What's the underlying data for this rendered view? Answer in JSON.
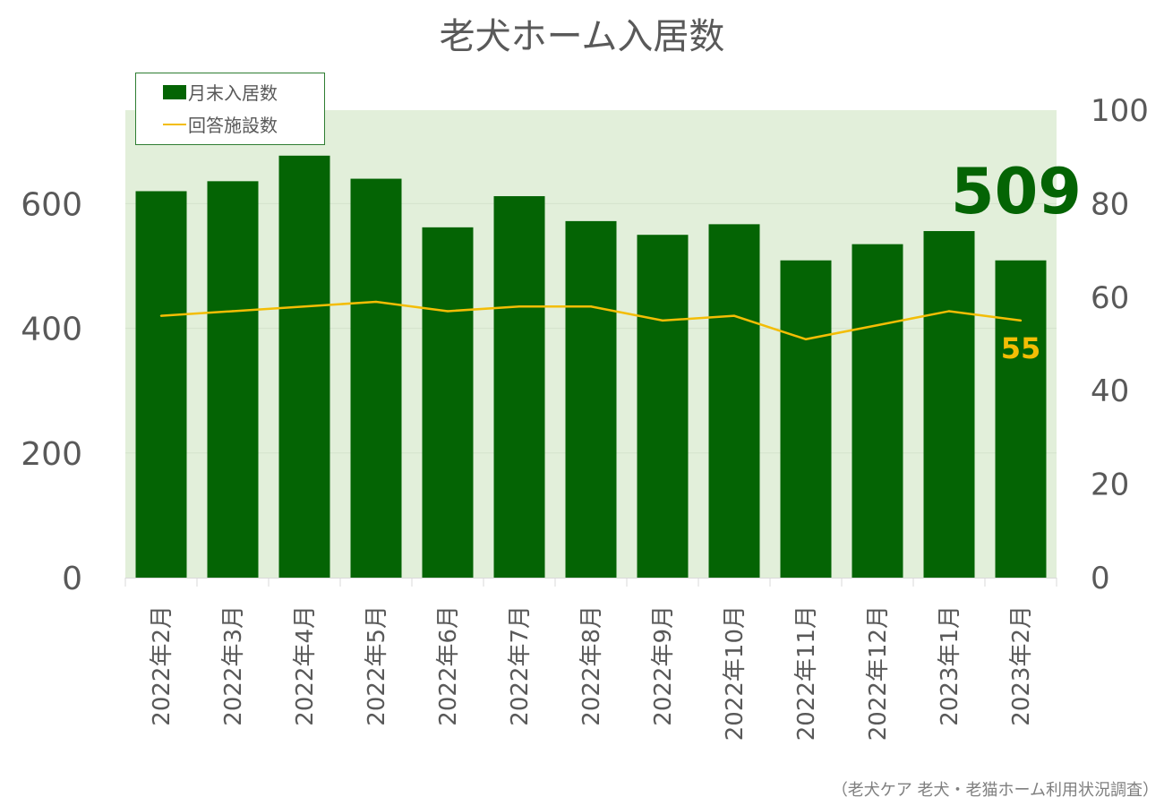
{
  "title": "老犬ホーム入居数",
  "source": "（老犬ケア 老犬・老猫ホーム利用状況調査）",
  "legend": {
    "bars_label": "月末入居数",
    "line_label": "回答施設数"
  },
  "callouts": {
    "last_bar_value": "509",
    "last_line_value": "55"
  },
  "colors": {
    "bar": "#046404",
    "line": "#f3bd05",
    "plot_bg": "#e2efda",
    "axis_text": "#595959"
  },
  "chart_data": {
    "type": "bar",
    "title": "老犬ホーム入居数",
    "categories": [
      "2022年2月",
      "2022年3月",
      "2022年4月",
      "2022年5月",
      "2022年6月",
      "2022年7月",
      "2022年8月",
      "2022年9月",
      "2022年10月",
      "2022年11月",
      "2022年12月",
      "2023年1月",
      "2023年2月"
    ],
    "series": [
      {
        "name": "月末入居数",
        "type": "bar",
        "axis": "left",
        "values": [
          620,
          636,
          677,
          640,
          562,
          612,
          572,
          550,
          567,
          509,
          535,
          556,
          509
        ]
      },
      {
        "name": "回答施設数",
        "type": "line",
        "axis": "right",
        "values": [
          56,
          57,
          58,
          59,
          57,
          58,
          58,
          55,
          56,
          51,
          54,
          57,
          55
        ]
      }
    ],
    "y_left": {
      "ylim": [
        0,
        750
      ],
      "ticks": [
        0,
        200,
        400,
        600
      ]
    },
    "y_right": {
      "ylim": [
        0,
        100
      ],
      "ticks": [
        0,
        20,
        40,
        60,
        80,
        100
      ]
    },
    "legend_position": "top-left",
    "grid": true
  }
}
